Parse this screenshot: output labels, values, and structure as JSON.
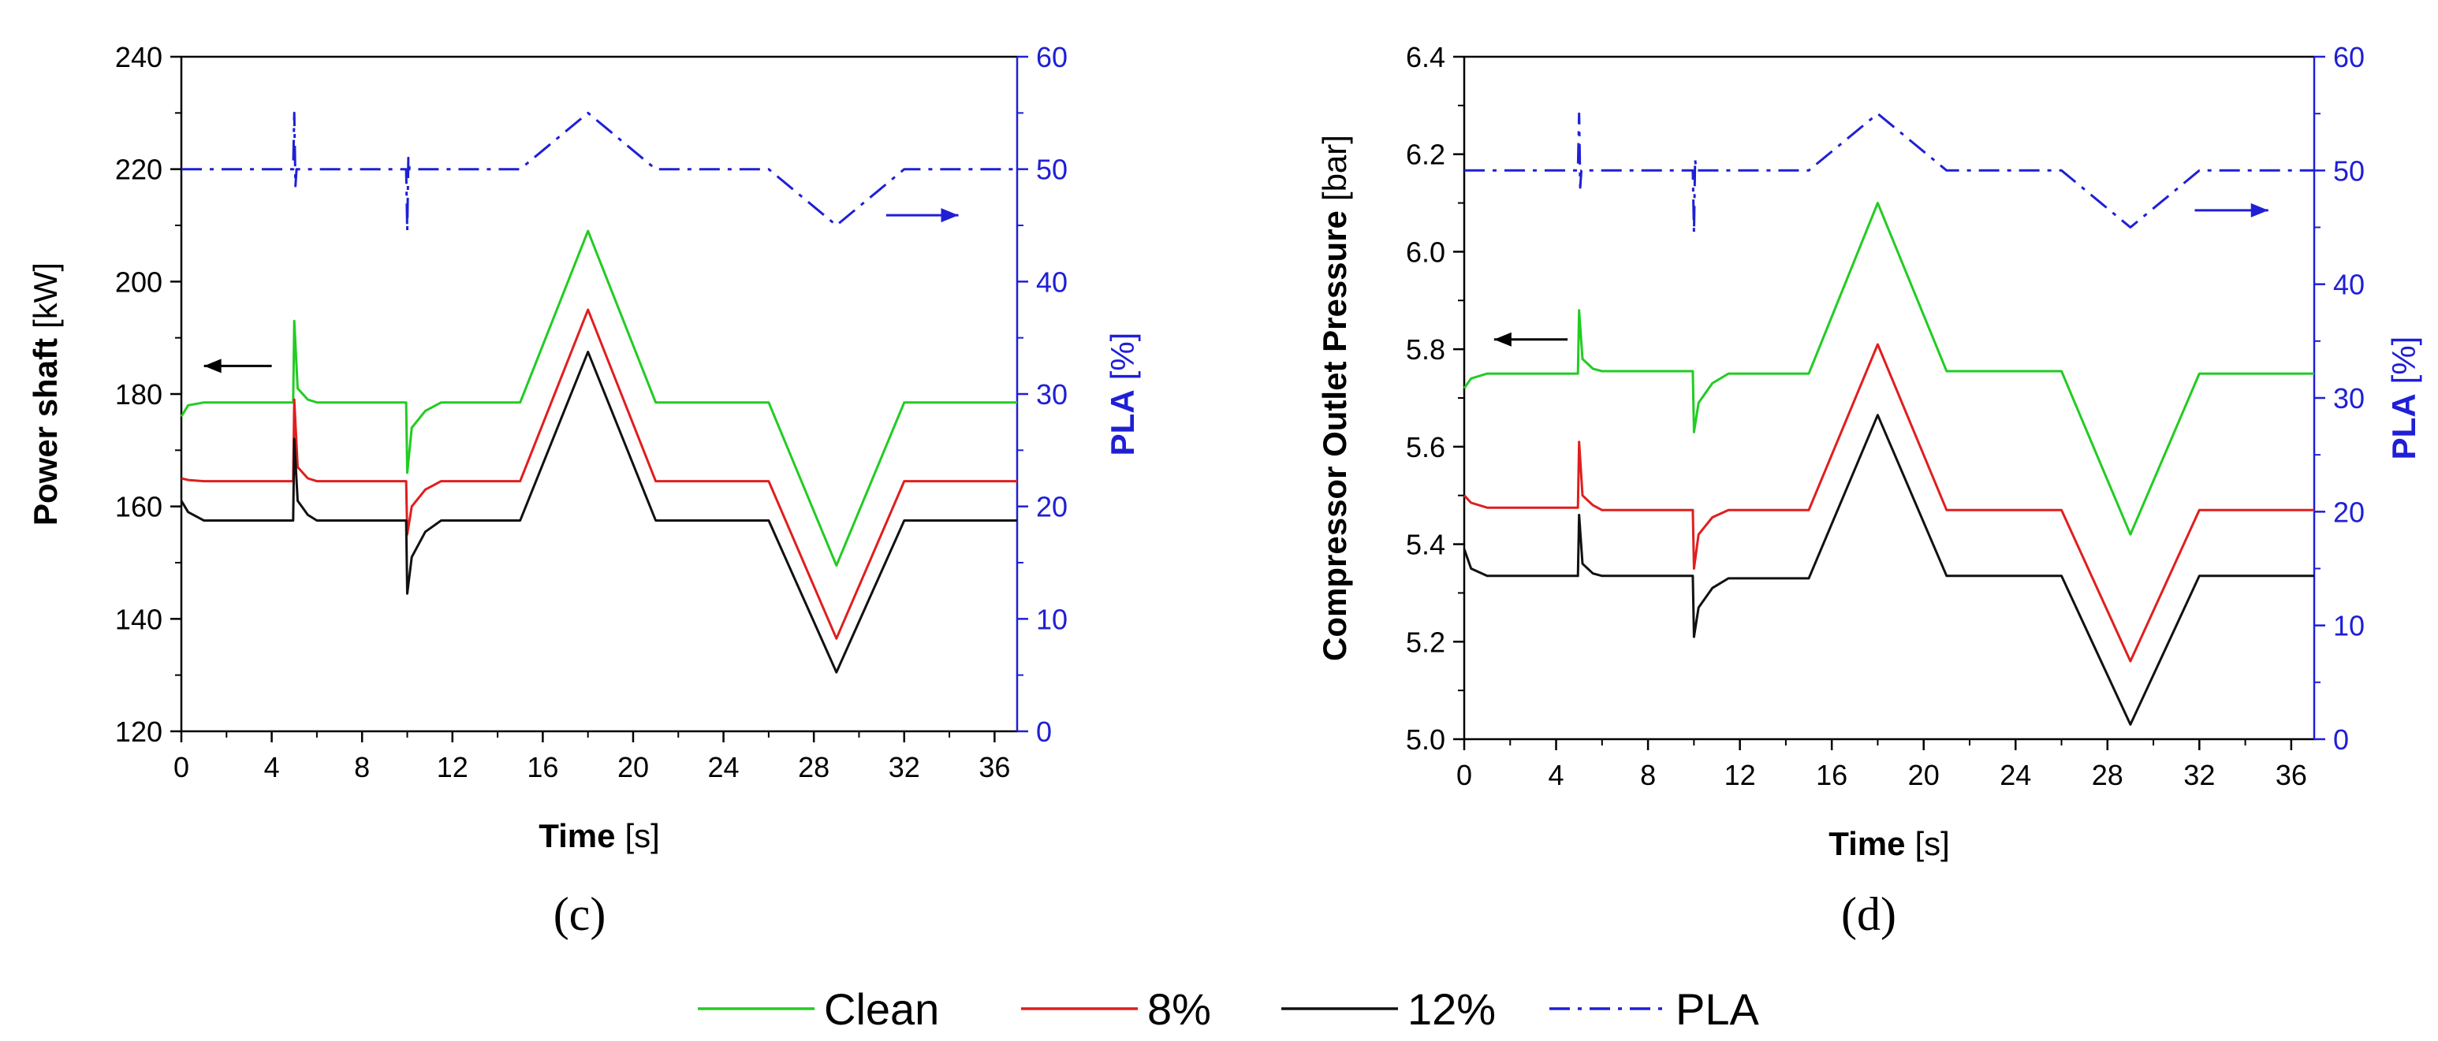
{
  "chart_data": [
    {
      "id": "c",
      "type": "line",
      "panel_label": "(c)",
      "xlabel": {
        "bold": "Time",
        "unit": "[s]"
      },
      "ylabel": {
        "bold": "Power shaft",
        "unit": "[kW]"
      },
      "y2label": {
        "bold": "PLA",
        "unit": "[%]"
      },
      "xlim": [
        0,
        37
      ],
      "ylim": [
        120,
        240
      ],
      "y2lim": [
        0,
        60
      ],
      "xticks": [
        0,
        4,
        8,
        12,
        16,
        20,
        24,
        28,
        32,
        36
      ],
      "yticks": [
        120,
        140,
        160,
        180,
        200,
        220,
        240
      ],
      "y2ticks": [
        0,
        10,
        20,
        30,
        40,
        50,
        60
      ],
      "arrows": [
        {
          "direction": "left",
          "x_from": 4,
          "x_to": 1,
          "y": 185,
          "color": "#000000"
        },
        {
          "direction": "right",
          "x_from": 31.2,
          "x_to": 34.4,
          "y2": 45.9,
          "color": "#1f1fd6"
        }
      ],
      "series": [
        {
          "name": "Clean",
          "axis": "left",
          "color": "#22cc22",
          "points": [
            [
              0,
              176
            ],
            [
              0.3,
              178
            ],
            [
              1,
              178.5
            ],
            [
              4.95,
              178.5
            ],
            [
              5,
              193
            ],
            [
              5.15,
              181
            ],
            [
              5.6,
              179
            ],
            [
              6,
              178.5
            ],
            [
              9.95,
              178.5
            ],
            [
              10,
              166
            ],
            [
              10.2,
              174
            ],
            [
              10.8,
              177
            ],
            [
              11.5,
              178.5
            ],
            [
              15,
              178.5
            ],
            [
              18,
              209
            ],
            [
              21,
              178.5
            ],
            [
              26,
              178.5
            ],
            [
              29,
              149.5
            ],
            [
              32,
              178.5
            ],
            [
              37,
              178.5
            ]
          ]
        },
        {
          "name": "8%",
          "axis": "left",
          "color": "#e01e1e",
          "points": [
            [
              0,
              165
            ],
            [
              0.3,
              164.7
            ],
            [
              1,
              164.5
            ],
            [
              4.95,
              164.5
            ],
            [
              5,
              179
            ],
            [
              5.15,
              167
            ],
            [
              5.6,
              165
            ],
            [
              6,
              164.5
            ],
            [
              9.95,
              164.5
            ],
            [
              10,
              155
            ],
            [
              10.2,
              160
            ],
            [
              10.8,
              163
            ],
            [
              11.5,
              164.5
            ],
            [
              15,
              164.5
            ],
            [
              18,
              195
            ],
            [
              21,
              164.5
            ],
            [
              26,
              164.5
            ],
            [
              29,
              136.5
            ],
            [
              32,
              164.5
            ],
            [
              37,
              164.5
            ]
          ]
        },
        {
          "name": "12%",
          "axis": "left",
          "color": "#111111",
          "points": [
            [
              0,
              161
            ],
            [
              0.3,
              159
            ],
            [
              1,
              157.5
            ],
            [
              4.95,
              157.5
            ],
            [
              5,
              172
            ],
            [
              5.15,
              161
            ],
            [
              5.6,
              158.5
            ],
            [
              6,
              157.5
            ],
            [
              9.95,
              157.5
            ],
            [
              10,
              144.5
            ],
            [
              10.2,
              151
            ],
            [
              10.8,
              155.5
            ],
            [
              11.5,
              157.5
            ],
            [
              15,
              157.5
            ],
            [
              18,
              187.5
            ],
            [
              21,
              157.5
            ],
            [
              26,
              157.5
            ],
            [
              29,
              130.5
            ],
            [
              32,
              157.5
            ],
            [
              37,
              157.5
            ]
          ]
        },
        {
          "name": "PLA",
          "axis": "right",
          "color": "#1f1fd6",
          "dash": "dashdot",
          "points": [
            [
              0,
              50
            ],
            [
              4.95,
              50
            ],
            [
              5,
              55
            ],
            [
              5.05,
              48.5
            ],
            [
              5.1,
              50
            ],
            [
              9.95,
              50
            ],
            [
              10,
              44.5
            ],
            [
              10.05,
              51
            ],
            [
              10.1,
              50
            ],
            [
              15,
              50
            ],
            [
              18,
              55
            ],
            [
              21,
              50
            ],
            [
              26,
              50
            ],
            [
              29,
              45
            ],
            [
              32,
              50
            ],
            [
              37,
              50
            ]
          ]
        }
      ]
    },
    {
      "id": "d",
      "type": "line",
      "panel_label": "(d)",
      "xlabel": {
        "bold": "Time",
        "unit": "[s]"
      },
      "ylabel": {
        "bold": "Compressor Outlet Pressure",
        "unit": "[bar]"
      },
      "y2label": {
        "bold": "PLA",
        "unit": "[%]"
      },
      "xlim": [
        0,
        37
      ],
      "ylim": [
        5.0,
        6.4
      ],
      "y2lim": [
        0,
        60
      ],
      "xticks": [
        0,
        4,
        8,
        12,
        16,
        20,
        24,
        28,
        32,
        36
      ],
      "yticks": [
        5.0,
        5.2,
        5.4,
        5.6,
        5.8,
        6.0,
        6.2,
        6.4
      ],
      "ytick_labels": [
        "5.0",
        "5.2",
        "5.4",
        "5.6",
        "5.8",
        "6.0",
        "6.2",
        "6.4"
      ],
      "y2ticks": [
        0,
        10,
        20,
        30,
        40,
        50,
        60
      ],
      "arrows": [
        {
          "direction": "left",
          "x_from": 4.5,
          "x_to": 1.3,
          "y": 5.82,
          "color": "#000000"
        },
        {
          "direction": "right",
          "x_from": 31.8,
          "x_to": 35,
          "y2": 46.5,
          "color": "#1f1fd6"
        }
      ],
      "series": [
        {
          "name": "Clean",
          "axis": "left",
          "color": "#22cc22",
          "points": [
            [
              0,
              5.72
            ],
            [
              0.3,
              5.74
            ],
            [
              1,
              5.75
            ],
            [
              4.95,
              5.75
            ],
            [
              5,
              5.88
            ],
            [
              5.15,
              5.78
            ],
            [
              5.6,
              5.76
            ],
            [
              6,
              5.755
            ],
            [
              9.95,
              5.755
            ],
            [
              10,
              5.63
            ],
            [
              10.2,
              5.69
            ],
            [
              10.8,
              5.73
            ],
            [
              11.5,
              5.75
            ],
            [
              15,
              5.75
            ],
            [
              18,
              6.1
            ],
            [
              21,
              5.755
            ],
            [
              26,
              5.755
            ],
            [
              29,
              5.42
            ],
            [
              32,
              5.75
            ],
            [
              37,
              5.75
            ]
          ]
        },
        {
          "name": "8%",
          "axis": "left",
          "color": "#e01e1e",
          "points": [
            [
              0,
              5.5
            ],
            [
              0.3,
              5.485
            ],
            [
              1,
              5.475
            ],
            [
              4.95,
              5.475
            ],
            [
              5,
              5.61
            ],
            [
              5.15,
              5.5
            ],
            [
              5.6,
              5.48
            ],
            [
              6,
              5.47
            ],
            [
              9.95,
              5.47
            ],
            [
              10,
              5.35
            ],
            [
              10.2,
              5.42
            ],
            [
              10.8,
              5.455
            ],
            [
              11.5,
              5.47
            ],
            [
              15,
              5.47
            ],
            [
              18,
              5.81
            ],
            [
              21,
              5.47
            ],
            [
              26,
              5.47
            ],
            [
              29,
              5.16
            ],
            [
              32,
              5.47
            ],
            [
              37,
              5.47
            ]
          ]
        },
        {
          "name": "12%",
          "axis": "left",
          "color": "#111111",
          "points": [
            [
              0,
              5.39
            ],
            [
              0.3,
              5.35
            ],
            [
              1,
              5.335
            ],
            [
              4.95,
              5.335
            ],
            [
              5,
              5.46
            ],
            [
              5.15,
              5.36
            ],
            [
              5.6,
              5.34
            ],
            [
              6,
              5.335
            ],
            [
              9.95,
              5.335
            ],
            [
              10,
              5.21
            ],
            [
              10.2,
              5.27
            ],
            [
              10.8,
              5.31
            ],
            [
              11.5,
              5.33
            ],
            [
              15,
              5.33
            ],
            [
              18,
              5.665
            ],
            [
              21,
              5.335
            ],
            [
              26,
              5.335
            ],
            [
              29,
              5.03
            ],
            [
              32,
              5.335
            ],
            [
              37,
              5.335
            ]
          ]
        },
        {
          "name": "PLA",
          "axis": "right",
          "color": "#1f1fd6",
          "dash": "dashdot",
          "points": [
            [
              0,
              50
            ],
            [
              4.95,
              50
            ],
            [
              5,
              55
            ],
            [
              5.05,
              48.5
            ],
            [
              5.1,
              50
            ],
            [
              9.95,
              50
            ],
            [
              10,
              44.5
            ],
            [
              10.05,
              51
            ],
            [
              10.1,
              50
            ],
            [
              15,
              50
            ],
            [
              18,
              55
            ],
            [
              21,
              50
            ],
            [
              26,
              50
            ],
            [
              29,
              45
            ],
            [
              32,
              50
            ],
            [
              37,
              50
            ]
          ]
        }
      ]
    }
  ],
  "legend": [
    {
      "label": "Clean",
      "color": "#22cc22",
      "dash": "solid"
    },
    {
      "label": "8%",
      "color": "#e01e1e",
      "dash": "solid"
    },
    {
      "label": "12%",
      "color": "#111111",
      "dash": "solid"
    },
    {
      "label": "PLA",
      "color": "#1f1fd6",
      "dash": "dashdot"
    }
  ]
}
